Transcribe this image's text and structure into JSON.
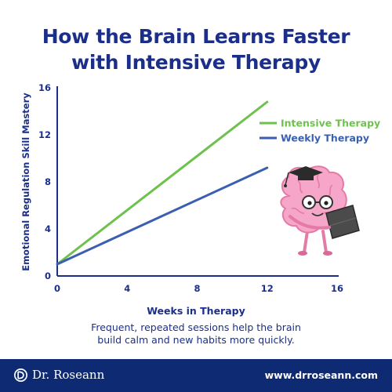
{
  "title_line1": "How the Brain Learns Faster",
  "title_line2": "with Intensive Therapy",
  "caption_line1": "Frequent, repeated sessions help the brain",
  "caption_line2": "build calm and new habits more quickly.",
  "footer": {
    "brand": "Dr. Roseann",
    "website": "www.drroseann.com"
  },
  "colors": {
    "title": "#1b2f8a",
    "intensive": "#6cc24a",
    "weekly": "#3b5fb0",
    "footer_bg": "#0e2a73"
  },
  "illustration": "brain-reading-book-icon",
  "chart_data": {
    "type": "line",
    "xlabel": "Weeks in Therapy",
    "ylabel": "Emotional Regulation Skill Mastery",
    "xlim": [
      0,
      16
    ],
    "ylim": [
      0,
      16
    ],
    "xticks": [
      0,
      4,
      8,
      12,
      16
    ],
    "yticks": [
      0,
      4,
      8,
      12,
      16
    ],
    "legend_position": "right",
    "series": [
      {
        "name": "Intensive Therapy",
        "color": "#6cc24a",
        "x": [
          0,
          12
        ],
        "y": [
          1,
          14.8
        ]
      },
      {
        "name": "Weekly Therapy",
        "color": "#3b5fb0",
        "x": [
          0,
          12
        ],
        "y": [
          1,
          9.2
        ]
      }
    ]
  }
}
